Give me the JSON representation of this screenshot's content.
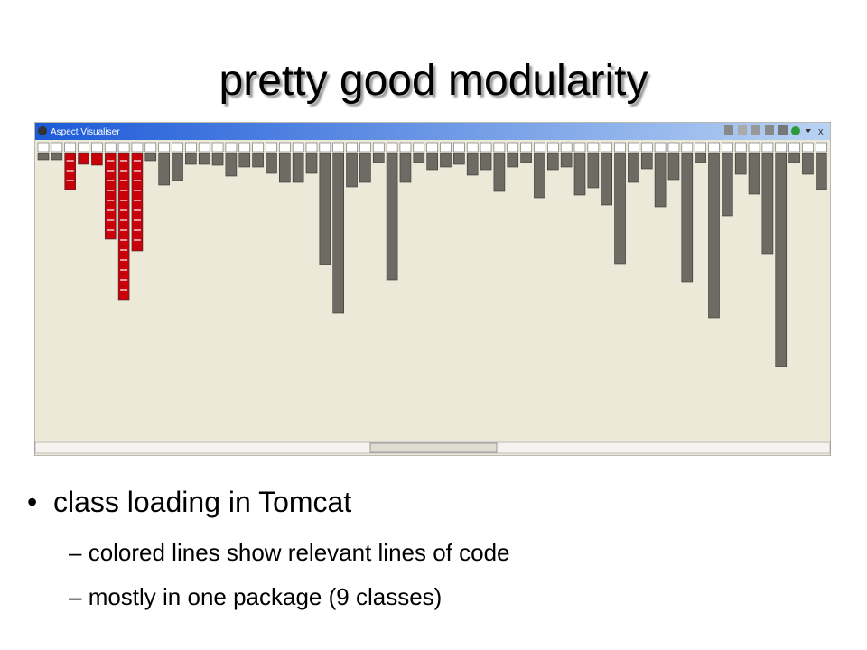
{
  "slide": {
    "title": "pretty good modularity",
    "window": {
      "title": "Aspect Visualiser"
    },
    "bullets": [
      {
        "text": "class loading in Tomcat",
        "subbullets": [
          "colored lines show relevant lines of code",
          "mostly in one package (9 classes)"
        ]
      }
    ]
  }
}
